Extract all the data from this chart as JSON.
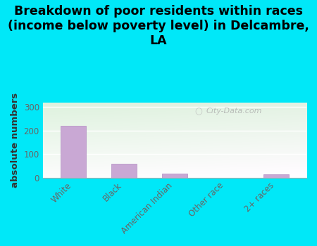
{
  "categories": [
    "White",
    "Black",
    "American Indian",
    "Other race",
    "2+ races"
  ],
  "values": [
    220,
    60,
    18,
    0,
    13
  ],
  "bar_color": "#c9a8d4",
  "bar_edge_color": "#b898c8",
  "title": "Breakdown of poor residents within races\n(income below poverty level) in Delcambre,\nLA",
  "ylabel": "absolute numbers",
  "ylim": [
    0,
    320
  ],
  "yticks": [
    0,
    100,
    200,
    300
  ],
  "background_outer": "#00e8f8",
  "bg_top_left": "#ddeedd",
  "bg_top_right": "#eef8ee",
  "bg_bottom": "#f8fef8",
  "title_fontsize": 12.5,
  "ylabel_fontsize": 9.5,
  "tick_fontsize": 8.5,
  "watermark": "City-Data.com"
}
